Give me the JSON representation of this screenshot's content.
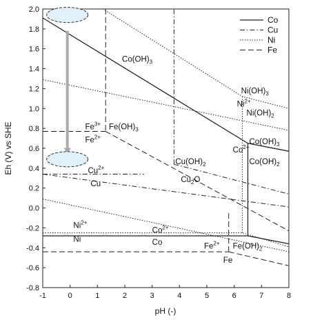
{
  "chart_data": {
    "type": "line",
    "xlabel": "pH (-)",
    "ylabel": "Eh (V) vs SHE",
    "xlim": [
      -1,
      8
    ],
    "ylim": [
      -0.8,
      2.0
    ],
    "x_ticks": [
      -1,
      0,
      1,
      2,
      3,
      4,
      5,
      6,
      7,
      8
    ],
    "x_tick_labels": [
      "-1",
      "0",
      "1",
      "2",
      "3",
      "4",
      "5",
      "6",
      "7",
      "8"
    ],
    "y_ticks": [
      -0.8,
      -0.6,
      -0.4,
      -0.2,
      0.0,
      0.2,
      0.4,
      0.6,
      0.8,
      1.0,
      1.2,
      1.4,
      1.6,
      1.8,
      2.0
    ],
    "y_tick_labels": [
      "-0.8",
      "-0.6",
      "-0.4",
      "-0.2",
      "0.0",
      "0.2",
      "0.4",
      "0.6",
      "0.8",
      "1.0",
      "1.2",
      "1.4",
      "1.6",
      "1.8",
      "2.0"
    ],
    "grid": false,
    "legend_position": "top-right",
    "legend": [
      {
        "name": "Co",
        "style": "solid"
      },
      {
        "name": "Cu",
        "style": "dashdot"
      },
      {
        "name": "Ni",
        "style": "dotted"
      },
      {
        "name": "Fe",
        "style": "dashed"
      }
    ],
    "series": [
      {
        "name": "Co",
        "style": "solid",
        "segments": [
          [
            [
              -1,
              1.91
            ],
            [
              6.5,
              0.65
            ],
            [
              8,
              0.57
            ]
          ],
          [
            [
              -1,
              -0.28
            ],
            [
              6.5,
              -0.28
            ],
            [
              8,
              -0.36
            ]
          ],
          [
            [
              6.5,
              0.65
            ],
            [
              6.5,
              -0.28
            ]
          ]
        ]
      },
      {
        "name": "Cu",
        "style": "dashdot",
        "segments": [
          [
            [
              -1,
              0.34
            ],
            [
              2.7,
              0.34
            ]
          ],
          [
            [
              -1,
              0.34
            ],
            [
              8,
              0.01
            ]
          ],
          [
            [
              3.8,
              0.44
            ],
            [
              8,
              0.14
            ]
          ],
          [
            [
              3.8,
              0.44
            ],
            [
              3.8,
              2.0
            ]
          ]
        ]
      },
      {
        "name": "Ni",
        "style": "dotted",
        "segments": [
          [
            [
              -1,
              1.29
            ],
            [
              8,
              0.78
            ]
          ],
          [
            [
              -1,
              0.09
            ],
            [
              8,
              -0.44
            ]
          ],
          [
            [
              1.2,
              2.0
            ],
            [
              6.3,
              1.12
            ],
            [
              8,
              1.0
            ]
          ],
          [
            [
              -1,
              -0.25
            ],
            [
              6.3,
              -0.25
            ],
            [
              8,
              -0.39
            ]
          ],
          [
            [
              6.3,
              1.12
            ],
            [
              6.3,
              -0.25
            ]
          ]
        ]
      },
      {
        "name": "Fe",
        "style": "dashed",
        "segments": [
          [
            [
              -1,
              0.77
            ],
            [
              1.3,
              0.77
            ]
          ],
          [
            [
              1.3,
              2.0
            ],
            [
              1.3,
              0.77
            ]
          ],
          [
            [
              1.3,
              0.77
            ],
            [
              8,
              -0.23
            ]
          ],
          [
            [
              -1,
              -0.44
            ],
            [
              5.8,
              -0.44
            ]
          ],
          [
            [
              5.8,
              -0.44
            ],
            [
              5.8,
              -0.05
            ]
          ],
          [
            [
              5.8,
              -0.44
            ],
            [
              8,
              -0.58
            ]
          ]
        ]
      }
    ],
    "annotations": {
      "arrow": {
        "from": [
          -0.1,
          1.78
        ],
        "to": [
          -0.1,
          0.57
        ]
      },
      "ellipses": [
        [
          -0.1,
          1.94
        ],
        [
          -0.1,
          0.49
        ]
      ]
    },
    "region_labels": [
      {
        "text": "Co(OH)",
        "sub": "3",
        "x": 1.9,
        "y": 1.47
      },
      {
        "text": "Ni(OH)",
        "sub": "3",
        "x": 6.25,
        "y": 1.15
      },
      {
        "text": "Ni",
        "sup": "2+",
        "x": 6.1,
        "y": 1.02
      },
      {
        "text": "Ni(OH)",
        "sub": "2",
        "x": 6.45,
        "y": 0.93
      },
      {
        "text": "Fe",
        "sup": "3+",
        "x": 0.55,
        "y": 0.79
      },
      {
        "text": "Fe(OH)",
        "sub": "3",
        "x": 1.42,
        "y": 0.79
      },
      {
        "text": "Fe",
        "sup": "2+",
        "x": 0.55,
        "y": 0.66
      },
      {
        "text": "Co(OH)",
        "sub": "3",
        "x": 6.55,
        "y": 0.64
      },
      {
        "text": "Co",
        "sup": "2+",
        "x": 5.95,
        "y": 0.56
      },
      {
        "text": "Cu(OH)",
        "sub": "2",
        "x": 3.85,
        "y": 0.44
      },
      {
        "text": "Co(OH)",
        "sub": "2",
        "x": 6.55,
        "y": 0.44
      },
      {
        "text": "Cu",
        "sup": "2+",
        "x": 0.65,
        "y": 0.35
      },
      {
        "text": "Cu",
        "x": 0.75,
        "y": 0.22
      },
      {
        "text": "Cu",
        "sub": "2",
        "tail": "O",
        "x": 4.05,
        "y": 0.26
      },
      {
        "text": "Ni",
        "sup": "2+",
        "x": 0.12,
        "y": -0.2
      },
      {
        "text": "Co",
        "sup": "2+",
        "x": 3.0,
        "y": -0.25
      },
      {
        "text": "Ni",
        "x": 0.12,
        "y": -0.34
      },
      {
        "text": "Co",
        "x": 3.0,
        "y": -0.37
      },
      {
        "text": "Fe",
        "sup": "2+",
        "x": 4.9,
        "y": -0.41
      },
      {
        "text": "Fe(OH)",
        "sub": "2",
        "x": 5.95,
        "y": -0.41
      },
      {
        "text": "Fe",
        "x": 5.6,
        "y": -0.55
      }
    ]
  }
}
